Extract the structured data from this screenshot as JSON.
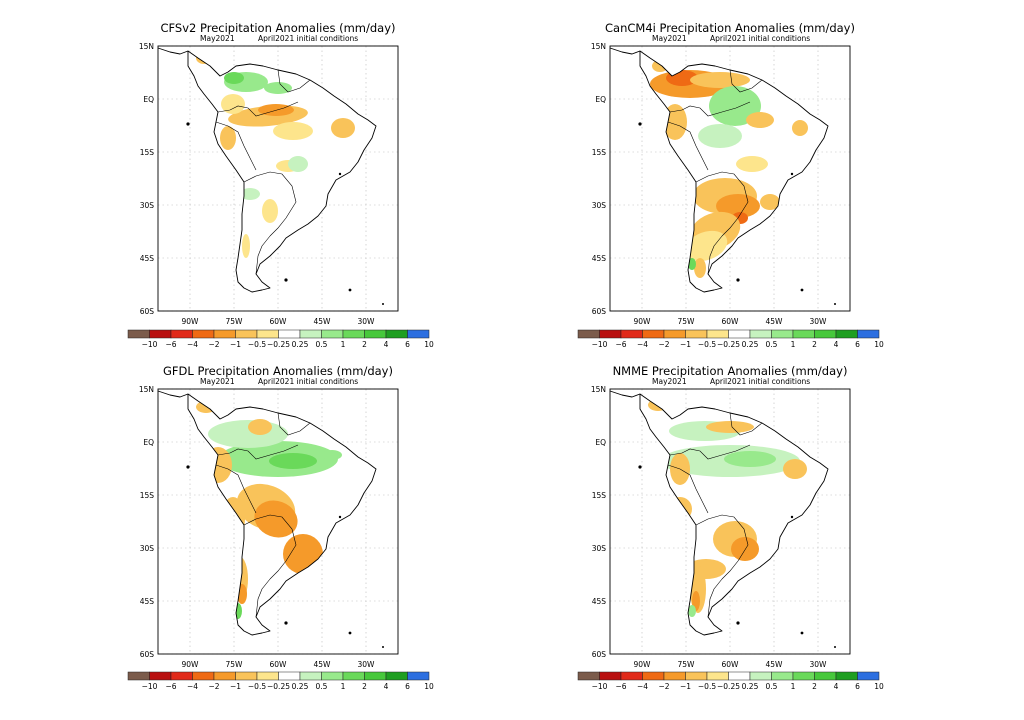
{
  "colors": {
    "brown": "#7b5b4b",
    "darkred": "#b80f0f",
    "red": "#e12a1a",
    "orange_dark": "#ef6a14",
    "orange": "#f59a2a",
    "orange_light": "#f9c35a",
    "yellow": "#fde58c",
    "white": "#ffffff",
    "green_pale": "#c6f2bf",
    "green_light": "#98e98c",
    "green": "#6ad95a",
    "green_mid": "#47c83b",
    "green_dark": "#1f9e21",
    "blue": "#2d6fe0"
  },
  "colorbar_labels": [
    "−10",
    "−6",
    "−4",
    "−2",
    "−1",
    "−0.5",
    "−0.25",
    "0.25",
    "0.5",
    "1",
    "2",
    "4",
    "6",
    "10"
  ],
  "lat_labels": [
    "15N",
    "EQ",
    "15S",
    "30S",
    "45S",
    "60S"
  ],
  "lon_labels": [
    "90W",
    "75W",
    "60W",
    "45W",
    "30W"
  ],
  "panels": [
    {
      "id": "cfsv2",
      "title": "CFSv2 Precipitation Anomalies (mm/day)",
      "month": "May2021",
      "init": "April2021 initial conditions"
    },
    {
      "id": "cancm4i",
      "title": "CanCM4i Precipitation Anomalies (mm/day)",
      "month": "May2021",
      "init": "April2021 initial conditions"
    },
    {
      "id": "gfdl",
      "title": "GFDL Precipitation Anomalies (mm/day)",
      "month": "May2021",
      "init": "April2021 initial conditions"
    },
    {
      "id": "nmme",
      "title": "NMME Precipitation Anomalies (mm/day)",
      "month": "May2021",
      "init": "April2021 initial conditions"
    }
  ]
}
